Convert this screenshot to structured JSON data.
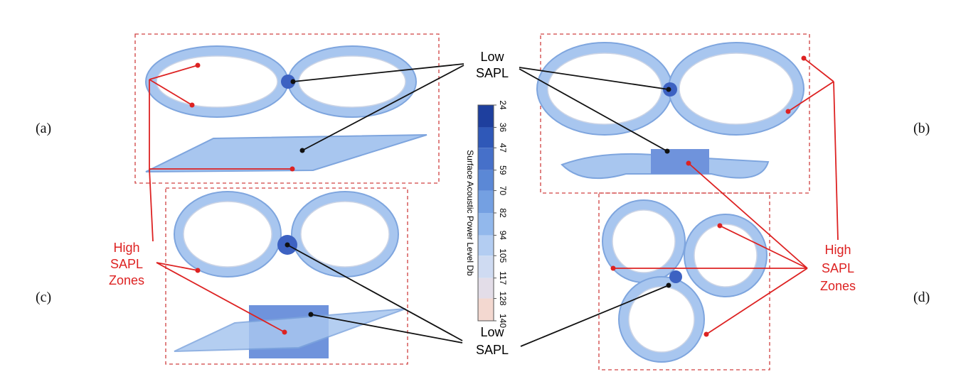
{
  "panel_labels": [
    "(a)",
    "(b)",
    "(c)",
    "(d)"
  ],
  "low_annotation": [
    "Low",
    "SAPL"
  ],
  "high_annotation": [
    "High",
    "SAPL",
    "Zones"
  ],
  "colorbar": {
    "title": "Surface Acoustic Power Level Db",
    "ticks": [
      24,
      36,
      47,
      59,
      70,
      82,
      94,
      105,
      117,
      128,
      140
    ],
    "colors": [
      "#1e3f9e",
      "#2f58b8",
      "#4670c9",
      "#5b88d6",
      "#74a0e2",
      "#92b8ec",
      "#b3cdf2",
      "#cfdbf2",
      "#e3dde8",
      "#f3d8d0"
    ]
  }
}
